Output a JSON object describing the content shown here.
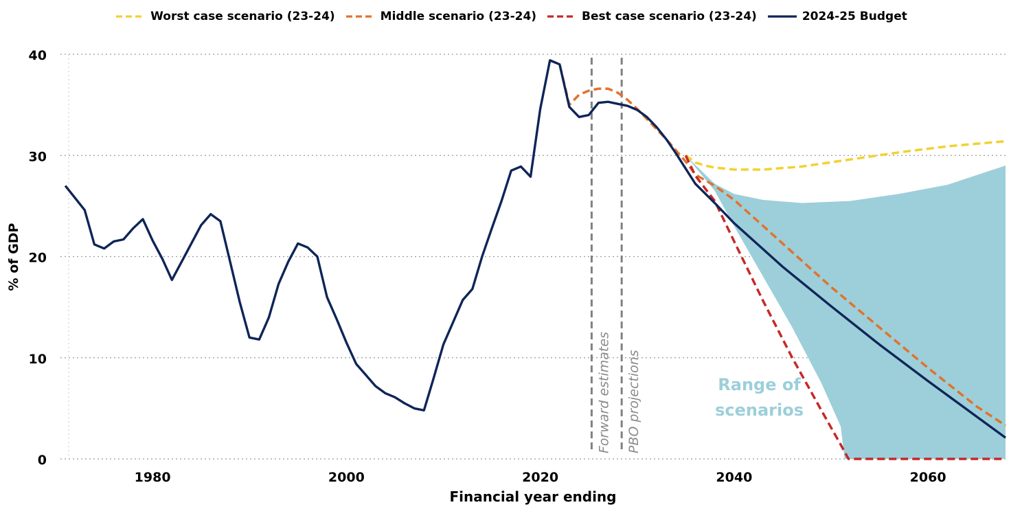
{
  "legend": [
    {
      "label": "Worst case scenario (23-24)",
      "color": "#f2d130",
      "dash": true
    },
    {
      "label": "Middle scenario (23-24)",
      "color": "#e2722c",
      "dash": true
    },
    {
      "label": "Best case scenario (23-24)",
      "color": "#c62828",
      "dash": true
    },
    {
      "label": "2024-25 Budget",
      "color": "#0f2558",
      "dash": false
    }
  ],
  "chart_data": {
    "type": "line",
    "title": "",
    "xlabel": "Financial year ending",
    "ylabel": "% of GDP",
    "xlim": [
      1970,
      2068
    ],
    "ylim": [
      0,
      40
    ],
    "xticks": [
      1980,
      2000,
      2020,
      2040,
      2060
    ],
    "yticks": [
      0,
      10,
      20,
      30,
      40
    ],
    "grid": "horizontal dotted",
    "legend_position": "top",
    "vlines": [
      {
        "x": 2025.3,
        "label": "Forward estimates"
      },
      {
        "x": 2028.4,
        "label": "PBO projections"
      }
    ],
    "range_label": "Range of scenarios",
    "range_color": "#9ccfda",
    "range": {
      "upper": [
        [
          2035,
          30
        ],
        [
          2038,
          27.2
        ],
        [
          2040,
          26.2
        ],
        [
          2043,
          25.6
        ],
        [
          2047,
          25.3
        ],
        [
          2052,
          25.5
        ],
        [
          2057,
          26.2
        ],
        [
          2062,
          27.1
        ],
        [
          2068,
          29
        ]
      ],
      "lower": [
        [
          2035,
          30
        ],
        [
          2038,
          26.5
        ],
        [
          2040,
          23
        ],
        [
          2043,
          18
        ],
        [
          2046,
          13
        ],
        [
          2049,
          7.5
        ],
        [
          2051,
          3.2
        ],
        [
          2051.4,
          0
        ],
        [
          2068,
          0
        ]
      ]
    },
    "series": [
      {
        "name": "2024-25 Budget",
        "color": "#0f2558",
        "points": [
          [
            1971,
            27
          ],
          [
            1972,
            25.8
          ],
          [
            1973,
            24.6
          ],
          [
            1974,
            21.2
          ],
          [
            1975,
            20.8
          ],
          [
            1976,
            21.5
          ],
          [
            1977,
            21.7
          ],
          [
            1978,
            22.8
          ],
          [
            1979,
            23.7
          ],
          [
            1980,
            21.6
          ],
          [
            1981,
            19.8
          ],
          [
            1982,
            17.7
          ],
          [
            1983,
            19.5
          ],
          [
            1984,
            21.3
          ],
          [
            1985,
            23.1
          ],
          [
            1986,
            24.2
          ],
          [
            1987,
            23.5
          ],
          [
            1988,
            19.5
          ],
          [
            1989,
            15.5
          ],
          [
            1990,
            12
          ],
          [
            1991,
            11.8
          ],
          [
            1992,
            14
          ],
          [
            1993,
            17.3
          ],
          [
            1994,
            19.5
          ],
          [
            1995,
            21.3
          ],
          [
            1996,
            20.9
          ],
          [
            1997,
            20
          ],
          [
            1998,
            16
          ],
          [
            1999,
            13.8
          ],
          [
            2000,
            11.5
          ],
          [
            2001,
            9.4
          ],
          [
            2002,
            8.3
          ],
          [
            2003,
            7.2
          ],
          [
            2004,
            6.5
          ],
          [
            2005,
            6.1
          ],
          [
            2006,
            5.5
          ],
          [
            2007,
            5
          ],
          [
            2008,
            4.8
          ],
          [
            2009,
            8
          ],
          [
            2010,
            11.3
          ],
          [
            2011,
            13.5
          ],
          [
            2012,
            15.7
          ],
          [
            2013,
            16.8
          ],
          [
            2014,
            20
          ],
          [
            2015,
            22.8
          ],
          [
            2016,
            25.5
          ],
          [
            2017,
            28.5
          ],
          [
            2018,
            28.9
          ],
          [
            2019,
            27.9
          ],
          [
            2020,
            34.6
          ],
          [
            2021,
            39.4
          ],
          [
            2022,
            39
          ],
          [
            2023,
            34.8
          ],
          [
            2024,
            33.8
          ],
          [
            2025,
            34
          ],
          [
            2026,
            35.2
          ],
          [
            2027,
            35.3
          ],
          [
            2028,
            35.1
          ],
          [
            2029,
            34.9
          ],
          [
            2030,
            34.5
          ],
          [
            2031,
            33.8
          ],
          [
            2032,
            32.8
          ],
          [
            2033,
            31.6
          ],
          [
            2034,
            30.2
          ],
          [
            2035,
            28.7
          ],
          [
            2036,
            27.2
          ],
          [
            2038,
            25.3
          ],
          [
            2040,
            23.3
          ],
          [
            2045,
            19
          ],
          [
            2050,
            15.1
          ],
          [
            2055,
            11.3
          ],
          [
            2060,
            7.7
          ],
          [
            2065,
            4.2
          ],
          [
            2068,
            2.1
          ]
        ]
      },
      {
        "name": "Middle scenario (23-24)",
        "color": "#e2722c",
        "dashed": true,
        "points": [
          [
            2021,
            39.4
          ],
          [
            2022,
            39
          ],
          [
            2023,
            35
          ],
          [
            2024,
            36
          ],
          [
            2025,
            36.4
          ],
          [
            2026,
            36.6
          ],
          [
            2027,
            36.6
          ],
          [
            2028,
            36.2
          ],
          [
            2029,
            35.5
          ],
          [
            2030,
            34.6
          ],
          [
            2031,
            33.6
          ],
          [
            2032,
            32.6
          ],
          [
            2033,
            31.6
          ],
          [
            2034,
            30.5
          ],
          [
            2035,
            29.4
          ],
          [
            2036,
            28.1
          ],
          [
            2038,
            27
          ],
          [
            2040,
            25.6
          ],
          [
            2045,
            21.3
          ],
          [
            2050,
            17
          ],
          [
            2055,
            13
          ],
          [
            2060,
            9
          ],
          [
            2065,
            5.2
          ],
          [
            2068,
            3.3
          ]
        ]
      },
      {
        "name": "Worst case scenario (23-24)",
        "color": "#f2d130",
        "dashed": true,
        "points": [
          [
            2035,
            30
          ],
          [
            2036,
            29.3
          ],
          [
            2037,
            29
          ],
          [
            2038,
            28.8
          ],
          [
            2040,
            28.6
          ],
          [
            2043,
            28.6
          ],
          [
            2047,
            28.9
          ],
          [
            2052,
            29.6
          ],
          [
            2057,
            30.3
          ],
          [
            2062,
            30.9
          ],
          [
            2068,
            31.4
          ]
        ]
      },
      {
        "name": "Best case scenario (23-24)",
        "color": "#c62828",
        "dashed": true,
        "points": [
          [
            2035,
            30
          ],
          [
            2036,
            28
          ],
          [
            2038,
            25.5
          ],
          [
            2040,
            21.5
          ],
          [
            2043,
            15.6
          ],
          [
            2046,
            10
          ],
          [
            2049,
            4.8
          ],
          [
            2051,
            1.4
          ],
          [
            2051.8,
            0
          ],
          [
            2068,
            0
          ]
        ]
      }
    ]
  }
}
